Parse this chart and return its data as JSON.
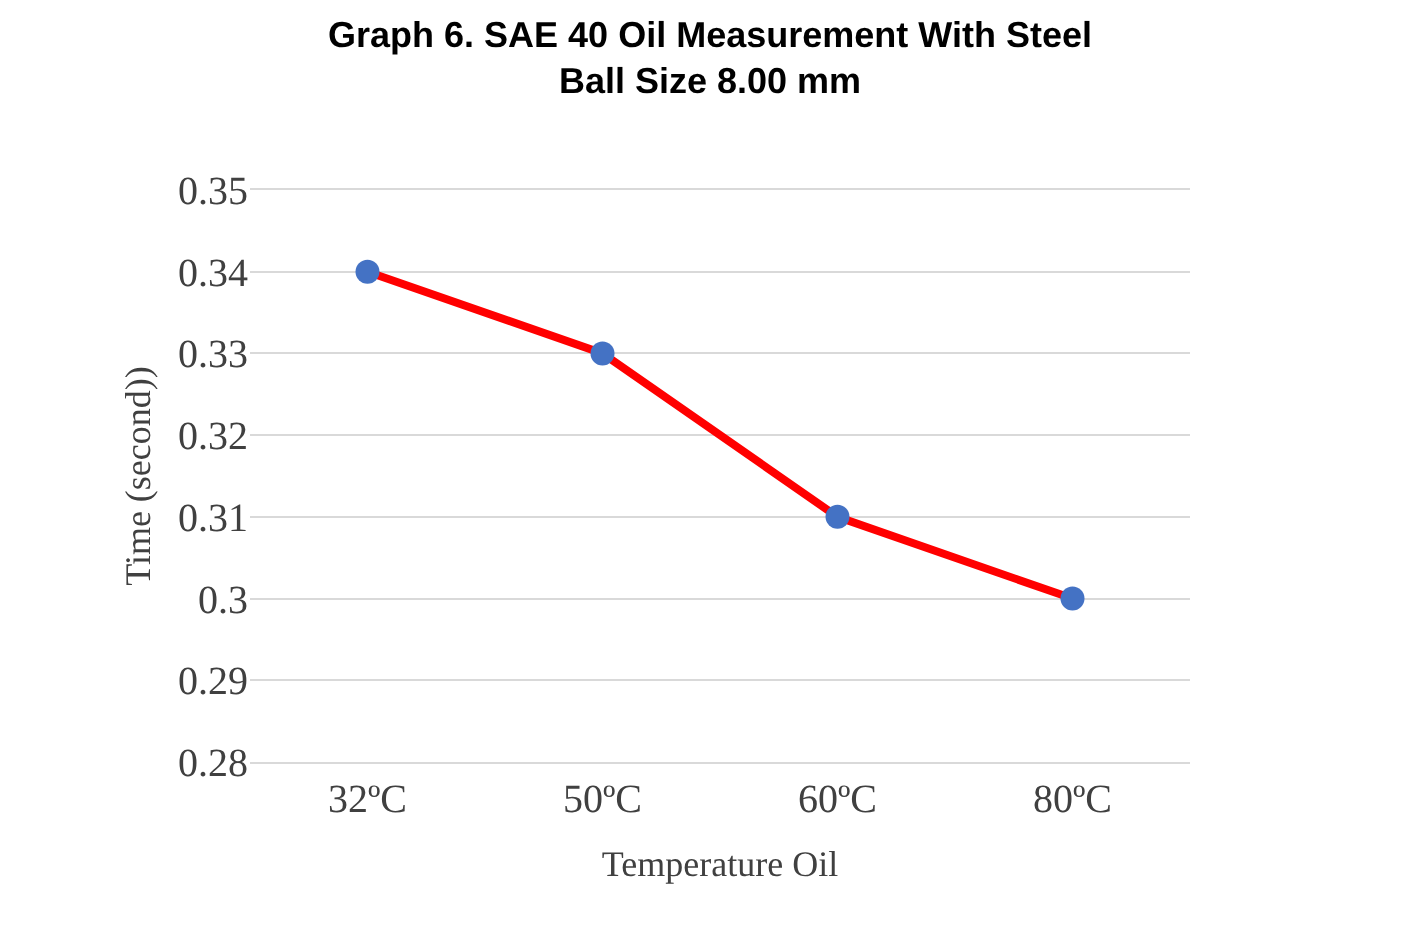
{
  "chart_data": {
    "type": "line",
    "title": "Graph 6. SAE 40 Oil Measurement With Steel Ball Size 8.00 mm",
    "xlabel": "Temperature Oil",
    "ylabel": "Time (second))",
    "categories": [
      "32ºC",
      "50ºC",
      "60ºC",
      "80ºC"
    ],
    "series": [
      {
        "marker": "none",
        "color": "#ff0000",
        "values": [
          0.34,
          0.33,
          0.31,
          0.3
        ]
      },
      {
        "type": "scatter",
        "color": "#4472c4",
        "values": [
          0.34,
          0.33,
          0.31,
          0.3
        ]
      }
    ],
    "ylim": [
      0.28,
      0.35
    ],
    "yticks": [
      0.28,
      0.29,
      0.3,
      0.31,
      0.32,
      0.33,
      0.34,
      0.35
    ],
    "grid": "y",
    "marker": "circle",
    "line_style": "solid",
    "legend": false
  }
}
